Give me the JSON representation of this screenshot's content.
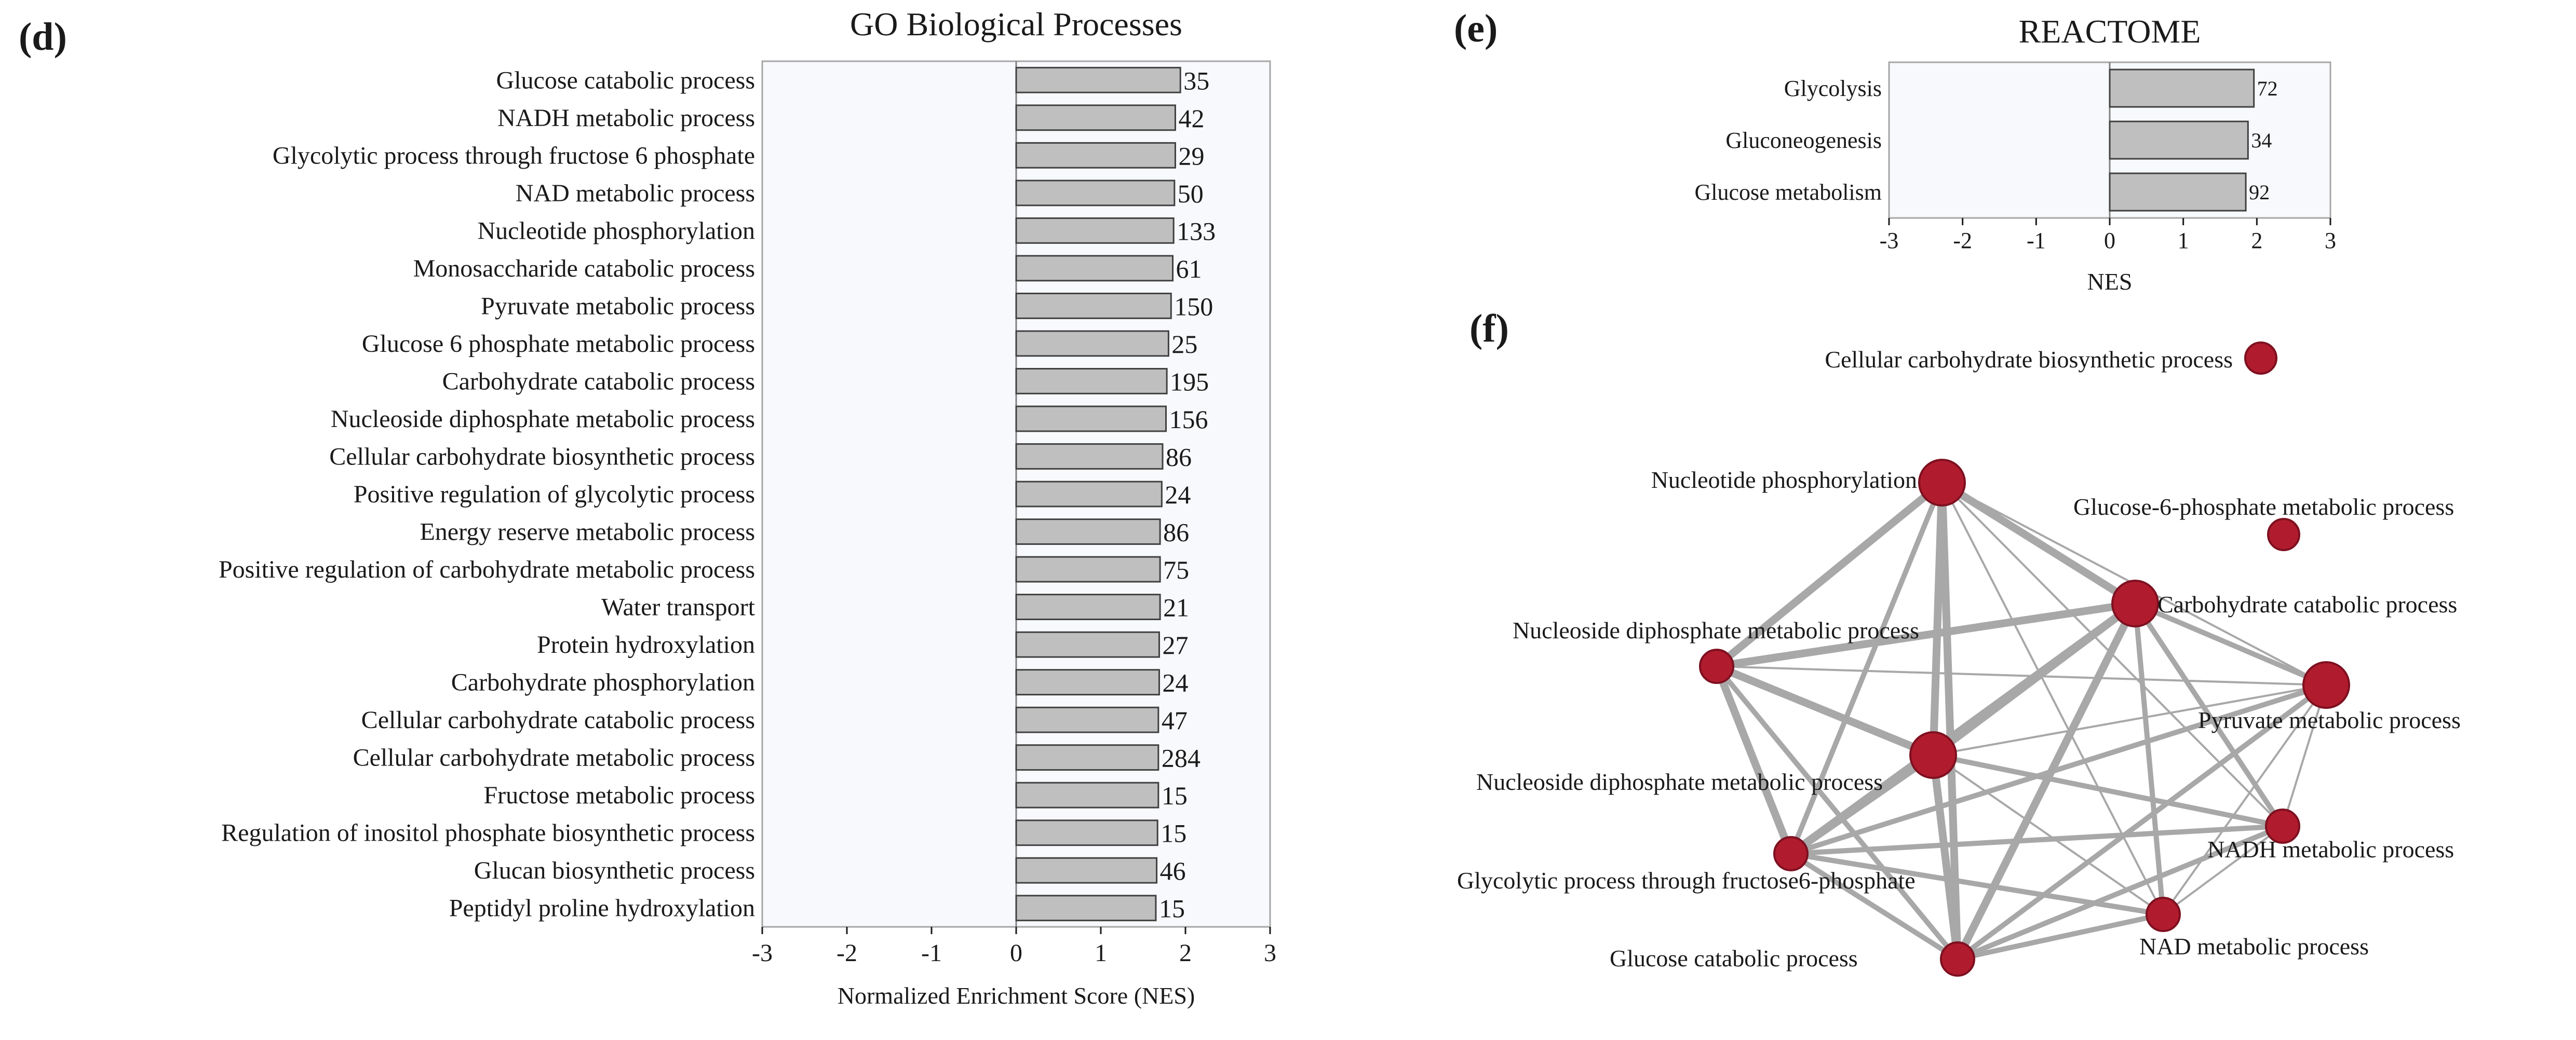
{
  "panels": {
    "d": {
      "letter": "(d)"
    },
    "e": {
      "letter": "(e)"
    },
    "f": {
      "letter": "(f)"
    }
  },
  "chart_data": [
    {
      "type": "bar",
      "orientation": "horizontal",
      "title": "GO Biological Processes",
      "xlabel": "Normalized Enrichment Score (NES)",
      "xlim": [
        -3,
        3
      ],
      "xticks": [
        "-3",
        "-2",
        "-1",
        "0",
        "1",
        "2",
        "3"
      ],
      "categories": [
        "Glucose catabolic process",
        "NADH metabolic process",
        "Glycolytic process through fructose 6 phosphate",
        "NAD metabolic process",
        "Nucleotide phosphorylation",
        "Monosaccharide catabolic process",
        "Pyruvate metabolic process",
        "Glucose 6 phosphate metabolic process",
        "Carbohydrate catabolic process",
        "Nucleoside diphosphate metabolic process",
        "Cellular carbohydrate biosynthetic process",
        "Positive regulation of glycolytic process",
        "Energy reserve metabolic process",
        "Positive regulation of carbohydrate metabolic process",
        "Water transport",
        "Protein hydroxylation",
        "Carbohydrate phosphorylation",
        "Cellular carbohydrate catabolic process",
        "Cellular carbohydrate metabolic process",
        "Fructose metabolic process",
        "Regulation of inositol phosphate biosynthetic process",
        "Glucan biosynthetic process",
        "Peptidyl proline hydroxylation"
      ],
      "values": [
        1.94,
        1.88,
        1.88,
        1.87,
        1.86,
        1.85,
        1.83,
        1.8,
        1.78,
        1.77,
        1.73,
        1.72,
        1.7,
        1.7,
        1.7,
        1.69,
        1.69,
        1.68,
        1.68,
        1.68,
        1.67,
        1.66,
        1.65
      ],
      "labels": [
        "35",
        "42",
        "29",
        "50",
        "133",
        "61",
        "150",
        "25",
        "195",
        "156",
        "86",
        "24",
        "86",
        "75",
        "21",
        "27",
        "24",
        "47",
        "284",
        "15",
        "15",
        "46",
        "15"
      ],
      "colors": {
        "bar": "#bfbfbf",
        "edge": "#404040",
        "plot_bg": "#f8f9fc",
        "frame": "#a6a6a6"
      }
    },
    {
      "type": "bar",
      "orientation": "horizontal",
      "title": "REACTOME",
      "xlabel": "NES",
      "xlim": [
        -3,
        3
      ],
      "xticks": [
        "-3",
        "-2",
        "-1",
        "0",
        "1",
        "2",
        "3"
      ],
      "categories": [
        "Glycolysis",
        "Gluconeogenesis",
        "Glucose metabolism"
      ],
      "values": [
        1.96,
        1.88,
        1.85
      ],
      "labels": [
        "72",
        "34",
        "92"
      ],
      "colors": {
        "bar": "#bfbfbf",
        "edge": "#404040",
        "plot_bg": "#f8f9fc",
        "frame": "#a6a6a6"
      }
    }
  ],
  "network": {
    "nodes": [
      {
        "id": "ccb",
        "label": "Cellular carbohydrate biosynthetic process",
        "size": "small"
      },
      {
        "id": "np",
        "label": "Nucleotide phosphorylation",
        "size": "large"
      },
      {
        "id": "g6p",
        "label": "Glucose-6-phosphate metabolic process",
        "size": "small"
      },
      {
        "id": "cc",
        "label": "Carbohydrate catabolic process",
        "size": "large"
      },
      {
        "id": "nd1",
        "label": "Nucleoside diphosphate metabolic process",
        "size": "medium"
      },
      {
        "id": "pm",
        "label": "Pyruvate metabolic process",
        "size": "large"
      },
      {
        "id": "nd2",
        "label": "Nucleoside diphosphate metabolic process",
        "size": "large"
      },
      {
        "id": "nadh",
        "label": "NADH metabolic process",
        "size": "medium"
      },
      {
        "id": "gp",
        "label": "Glycolytic process through fructose6-phosphate",
        "size": "medium"
      },
      {
        "id": "nad",
        "label": "NAD metabolic process",
        "size": "medium"
      },
      {
        "id": "gc",
        "label": "Glucose catabolic process",
        "size": "medium"
      }
    ],
    "edges": [
      [
        "np",
        "cc",
        "thick"
      ],
      [
        "np",
        "nd1",
        "thick"
      ],
      [
        "np",
        "nd2",
        "thick"
      ],
      [
        "np",
        "gc",
        "thick"
      ],
      [
        "np",
        "gp",
        "medium"
      ],
      [
        "np",
        "pm",
        "thin"
      ],
      [
        "np",
        "nad",
        "thin"
      ],
      [
        "np",
        "nadh",
        "thin"
      ],
      [
        "cc",
        "nd1",
        "thick"
      ],
      [
        "cc",
        "nd2",
        "thick"
      ],
      [
        "cc",
        "pm",
        "medium"
      ],
      [
        "cc",
        "nadh",
        "medium"
      ],
      [
        "cc",
        "gp",
        "thick"
      ],
      [
        "cc",
        "gc",
        "thick"
      ],
      [
        "cc",
        "nad",
        "medium"
      ],
      [
        "nd1",
        "nd2",
        "thick"
      ],
      [
        "nd1",
        "gp",
        "thick"
      ],
      [
        "nd1",
        "gc",
        "medium"
      ],
      [
        "nd1",
        "pm",
        "thin"
      ],
      [
        "nd2",
        "gp",
        "thick"
      ],
      [
        "nd2",
        "gc",
        "thick"
      ],
      [
        "nd2",
        "nad",
        "thin"
      ],
      [
        "nd2",
        "nadh",
        "medium"
      ],
      [
        "nd2",
        "pm",
        "thin"
      ],
      [
        "pm",
        "gp",
        "medium"
      ],
      [
        "pm",
        "gc",
        "medium"
      ],
      [
        "pm",
        "nadh",
        "thin"
      ],
      [
        "pm",
        "nad",
        "thin"
      ],
      [
        "gp",
        "nadh",
        "medium"
      ],
      [
        "gp",
        "nad",
        "medium"
      ],
      [
        "gp",
        "gc",
        "medium"
      ],
      [
        "gc",
        "nadh",
        "medium"
      ],
      [
        "gc",
        "nad",
        "medium"
      ],
      [
        "nadh",
        "nad",
        "thin"
      ],
      [
        "nd1",
        "cc",
        "thin"
      ]
    ],
    "colors": {
      "node": "#b01c2e",
      "node_edge": "#7e1020",
      "edge": "#a8a8a8"
    }
  }
}
